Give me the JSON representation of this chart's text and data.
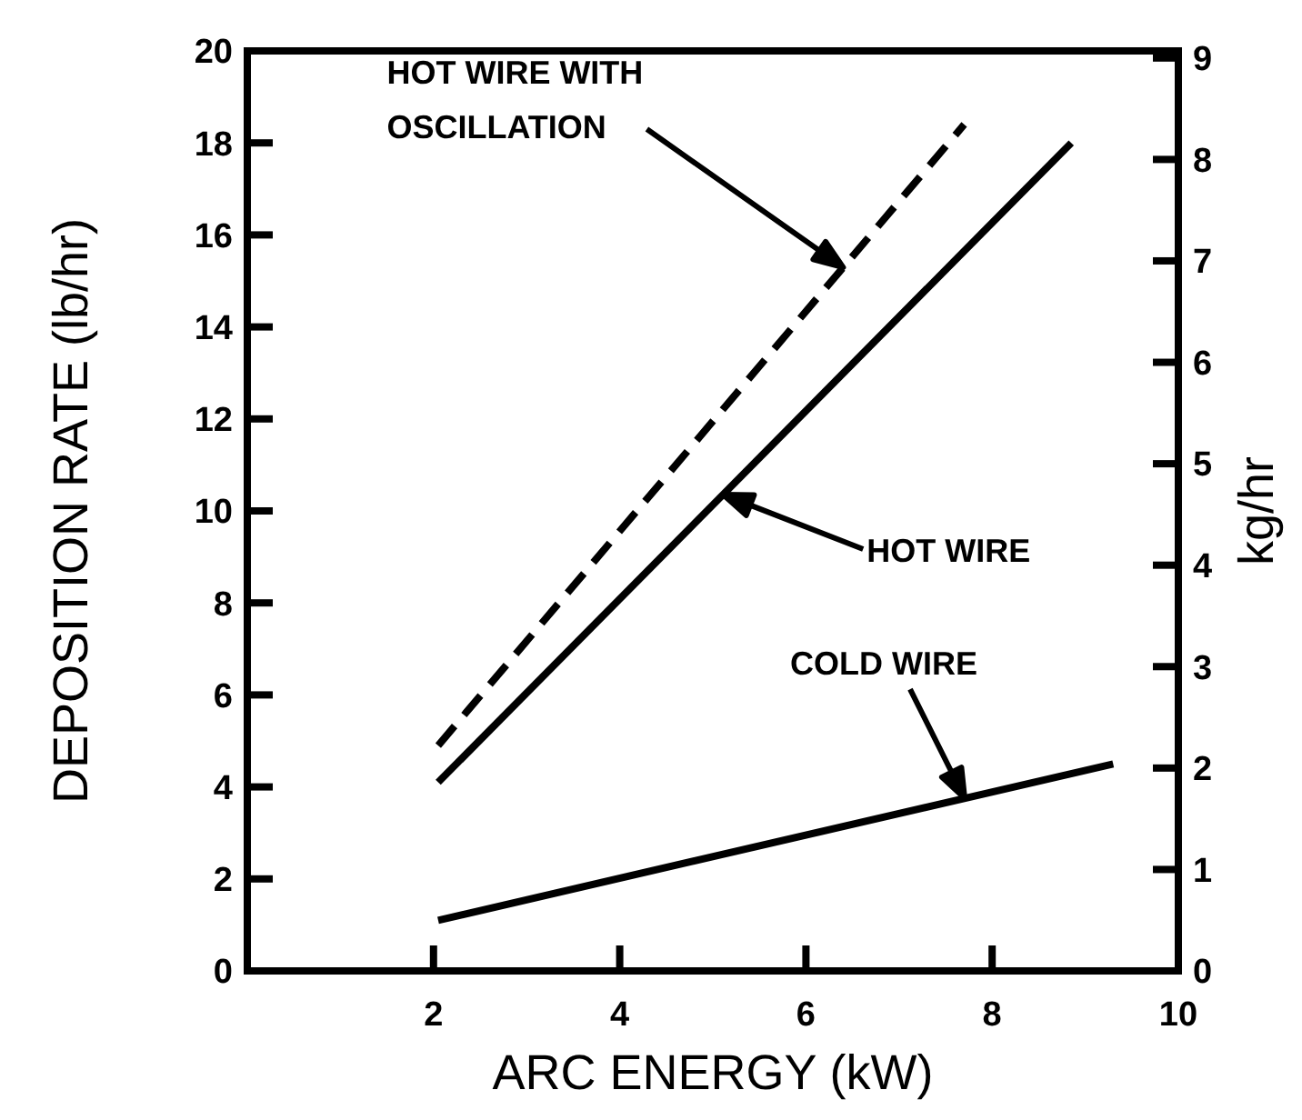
{
  "chart_data": {
    "type": "line",
    "xlabel": "ARC ENERGY (kW)",
    "ylabel": "DEPOSITION RATE (lb/hr)",
    "y2label": "kg/hr",
    "xlim": [
      0,
      10
    ],
    "xticks": [
      2,
      4,
      6,
      8,
      10
    ],
    "ylim": [
      0,
      20
    ],
    "yticks": [
      0,
      2,
      4,
      6,
      8,
      10,
      12,
      14,
      16,
      18,
      20
    ],
    "y2lim": [
      0,
      9.07
    ],
    "y2ticks": [
      0,
      1,
      2,
      3,
      4,
      5,
      6,
      7,
      8,
      9
    ],
    "grid": false,
    "marker": "none",
    "series": [
      {
        "color": "#000000",
        "line_style": "dashed",
        "x": [
          2.05,
          7.7
        ],
        "values": [
          4.9,
          18.4
        ]
      },
      {
        "color": "#000000",
        "line_style": "solid",
        "x": [
          2.05,
          8.85
        ],
        "values": [
          4.1,
          18.0
        ]
      },
      {
        "color": "#000000",
        "line_style": "solid",
        "x": [
          2.05,
          9.3
        ],
        "values": [
          1.1,
          4.5
        ]
      }
    ],
    "annotations": [
      "HOT WIRE WITH\nOSCILLATION",
      "HOT WIRE",
      "COLD WIRE"
    ]
  }
}
